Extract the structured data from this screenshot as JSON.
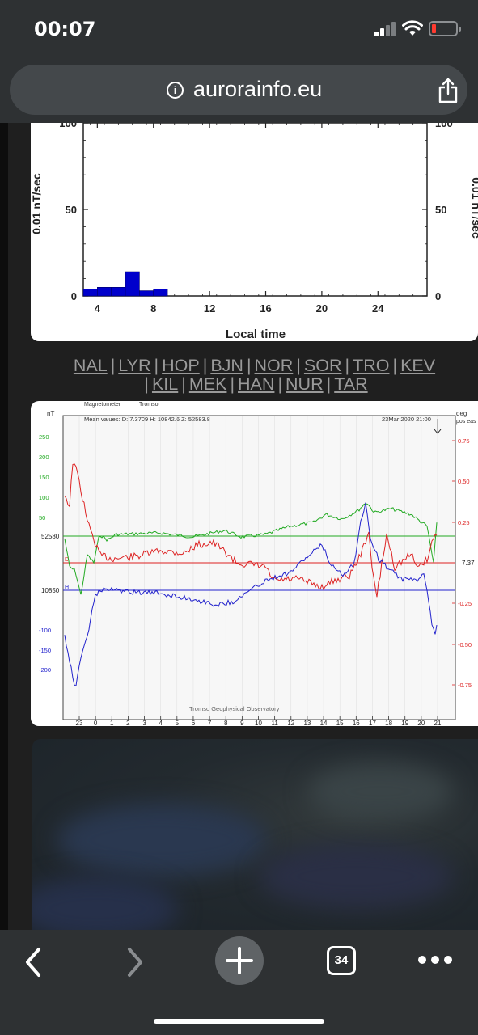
{
  "status_bar": {
    "time": "00:07"
  },
  "browser": {
    "domain": "aurorainfo.eu",
    "tab_count": "34"
  },
  "chart_data": [
    {
      "type": "bar",
      "xlabel": "Local time",
      "ylabel": "0.01 nT/sec",
      "x_ticks": [
        "4",
        "8",
        "12",
        "16",
        "20",
        "24"
      ],
      "y_ticks": [
        "0",
        "50",
        "100"
      ],
      "ylim": [
        0,
        100
      ],
      "x": [
        3.5,
        4.5,
        5.5,
        6.5,
        7.5,
        8.5
      ],
      "values": [
        4,
        5,
        5,
        14,
        3,
        4
      ],
      "color": "#0000cc"
    },
    {
      "type": "line",
      "header_left": "Magnetometer",
      "header_site": "Tromso",
      "mean_values": "Mean values:  D: 7.3709   H: 10842.6   Z: 52583.8",
      "date_label": "23Mar 2020 21:00",
      "footer": "Tromso Geophysical Observatory",
      "left_unit": "nT",
      "right_unit_1": "deg",
      "right_unit_2": "pos eas",
      "left_ticks_green": [
        "250",
        "200",
        "150",
        "100",
        "50"
      ],
      "left_ticks_blue": [
        "-100",
        "-150",
        "-200"
      ],
      "baseline_z": "52580",
      "baseline_h": "10850",
      "baseline_d": "7.37",
      "right_ticks": [
        "0.75",
        "0.50",
        "0.25",
        "-0.25",
        "-0.50",
        "-0.75"
      ],
      "x_ticks": [
        "23",
        "0",
        "1",
        "2",
        "3",
        "4",
        "5",
        "6",
        "7",
        "8",
        "9",
        "10",
        "11",
        "12",
        "13",
        "14",
        "15",
        "16",
        "17",
        "18",
        "19",
        "20",
        "21"
      ],
      "series": [
        {
          "name": "Z",
          "color": "#22aa22"
        },
        {
          "name": "D",
          "color": "#dd2222"
        },
        {
          "name": "H",
          "color": "#2222cc"
        }
      ]
    }
  ],
  "stations": [
    "NAL",
    "LYR",
    "HOP",
    "BJN",
    "NOR",
    "SOR",
    "TRO",
    "KEV",
    "KIL",
    "MEK",
    "HAN",
    "NUR",
    "TAR"
  ]
}
